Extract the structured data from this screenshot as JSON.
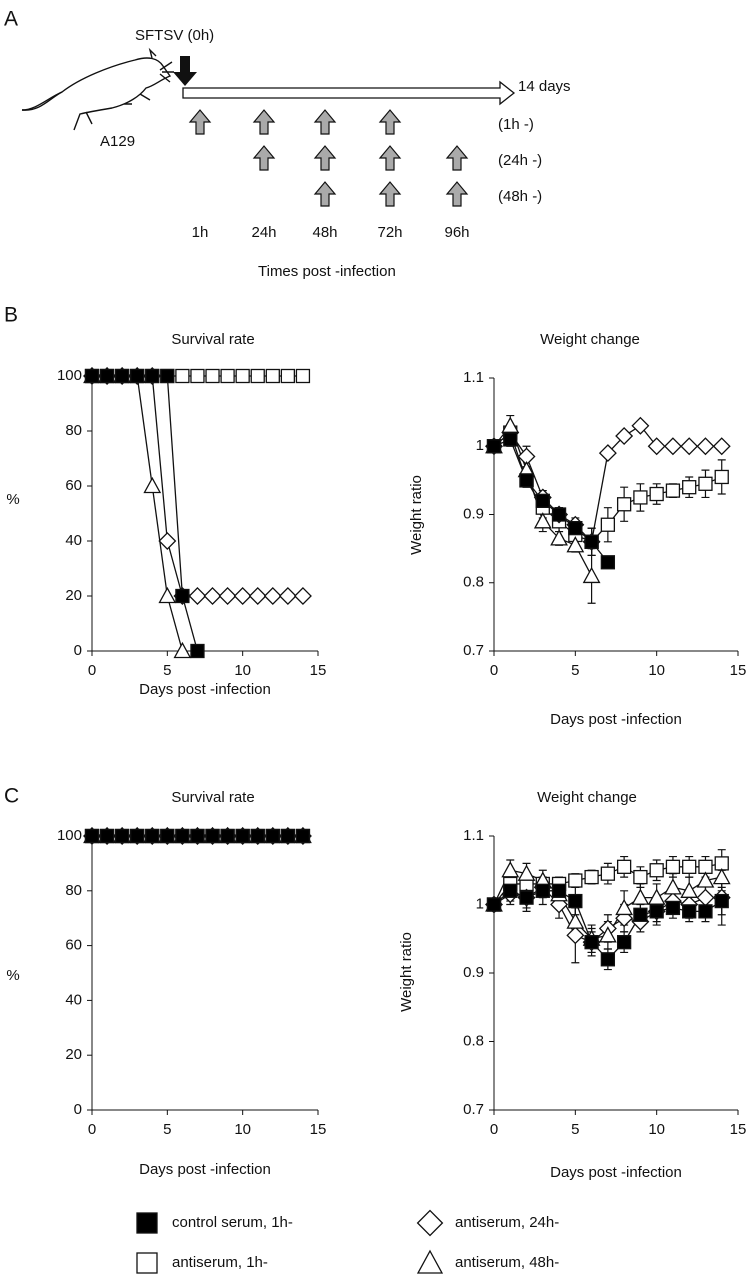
{
  "panels": [
    "A",
    "B",
    "C"
  ],
  "diagram": {
    "virus_label": "SFTSV (0h)",
    "mouse_label": "A129",
    "end_label": "14 days",
    "groups": [
      "(1h -)",
      "(24h  -)",
      "(48h  -)"
    ],
    "times": [
      "1h",
      "24h",
      "48h",
      "72h",
      "96h"
    ],
    "axis_title": "Times post -infection"
  },
  "legend": [
    "control serum, 1h-",
    "antiserum, 1h-",
    "antiserum, 24h-",
    "antiserum, 48h-"
  ],
  "chart_data": [
    {
      "type": "line",
      "title": "Survival rate",
      "y_label": "%",
      "x_label": "Days post -infection",
      "x": [
        0,
        1,
        2,
        3,
        4,
        5,
        6,
        7,
        8,
        9,
        10,
        11,
        12,
        13,
        14
      ],
      "xlim": [
        0,
        15
      ],
      "xticks": [
        0,
        5,
        10,
        15
      ],
      "ylim": [
        0,
        100
      ],
      "yticks": [
        0,
        20,
        40,
        60,
        80,
        100
      ],
      "series": [
        {
          "marker": "square",
          "color": "#000000",
          "values": [
            100,
            100,
            100,
            100,
            100,
            100,
            20,
            0,
            null,
            null,
            null,
            null,
            null,
            null,
            null
          ]
        },
        {
          "marker": "square",
          "color": "#ffffff",
          "values": [
            100,
            100,
            100,
            100,
            100,
            100,
            100,
            100,
            100,
            100,
            100,
            100,
            100,
            100,
            100
          ]
        },
        {
          "marker": "diamond",
          "color": "#ffffff",
          "values": [
            100,
            100,
            100,
            100,
            100,
            40,
            20,
            20,
            20,
            20,
            20,
            20,
            20,
            20,
            20
          ]
        },
        {
          "marker": "triangle",
          "color": "#ffffff",
          "values": [
            100,
            100,
            100,
            100,
            60,
            20,
            0,
            null,
            null,
            null,
            null,
            null,
            null,
            null,
            null
          ]
        }
      ]
    },
    {
      "type": "line",
      "title": "Weight change",
      "y_label": "Weight ratio",
      "x_label": "Days post -infection",
      "x": [
        0,
        1,
        2,
        3,
        4,
        5,
        6,
        7,
        8,
        9,
        10,
        11,
        12,
        13,
        14
      ],
      "xlim": [
        0,
        15
      ],
      "xticks": [
        0,
        5,
        10,
        15
      ],
      "ylim": [
        0.7,
        1.1
      ],
      "yticks": [
        0.7,
        0.8,
        0.9,
        1,
        1.1
      ],
      "series": [
        {
          "marker": "square",
          "color": "#000000",
          "values": [
            1,
            1.01,
            0.95,
            0.92,
            0.9,
            0.88,
            0.86,
            0.83,
            null,
            null,
            null,
            null,
            null,
            null,
            null
          ],
          "errors": [
            0,
            0.01,
            0.01,
            0.01,
            0.01,
            0.01,
            0.02,
            0,
            null,
            null,
            null,
            null,
            null,
            null,
            null
          ]
        },
        {
          "marker": "square",
          "color": "#ffffff",
          "values": [
            1,
            1.02,
            0.95,
            0.91,
            0.89,
            0.87,
            0.86,
            0.885,
            0.915,
            0.925,
            0.93,
            0.935,
            0.94,
            0.945,
            0.955
          ],
          "errors": [
            0,
            0.01,
            0.01,
            0.015,
            0.015,
            0.015,
            0.02,
            0.025,
            0.025,
            0.02,
            0.015,
            0.01,
            0.015,
            0.02,
            0.025
          ]
        },
        {
          "marker": "diamond",
          "color": "#ffffff",
          "values": [
            1,
            1.02,
            0.985,
            0.925,
            0.9,
            0.885,
            0.86,
            0.99,
            1.015,
            1.03,
            1,
            1,
            1,
            1,
            1
          ],
          "errors": [
            0,
            0.01,
            0.015,
            0.01,
            0.01,
            0.01,
            0.02,
            0,
            0,
            0,
            0,
            0,
            0,
            0,
            0
          ]
        },
        {
          "marker": "triangle",
          "color": "#ffffff",
          "values": [
            1,
            1.03,
            0.965,
            0.89,
            0.865,
            0.855,
            0.81,
            null,
            null,
            null,
            null,
            null,
            null,
            null,
            null
          ],
          "errors": [
            0,
            0.015,
            0.02,
            0.015,
            0.01,
            0.01,
            0.04,
            null,
            null,
            null,
            null,
            null,
            null,
            null,
            null
          ]
        }
      ]
    },
    {
      "type": "line",
      "title": "Survival rate",
      "y_label": "%",
      "x_label": "Days post -infection",
      "x": [
        0,
        1,
        2,
        3,
        4,
        5,
        6,
        7,
        8,
        9,
        10,
        11,
        12,
        13,
        14
      ],
      "xlim": [
        0,
        15
      ],
      "xticks": [
        0,
        5,
        10,
        15
      ],
      "ylim": [
        0,
        100
      ],
      "yticks": [
        0,
        20,
        40,
        60,
        80,
        100
      ],
      "series": [
        {
          "marker": "square",
          "color": "#000000",
          "values": [
            100,
            100,
            100,
            100,
            100,
            100,
            100,
            100,
            100,
            100,
            100,
            100,
            100,
            100,
            100
          ]
        },
        {
          "marker": "square",
          "color": "#ffffff",
          "values": [
            100,
            100,
            100,
            100,
            100,
            100,
            100,
            100,
            100,
            100,
            100,
            100,
            100,
            100,
            100
          ]
        },
        {
          "marker": "diamond",
          "color": "#ffffff",
          "values": [
            100,
            100,
            100,
            100,
            100,
            100,
            100,
            100,
            100,
            100,
            100,
            100,
            100,
            100,
            100
          ]
        },
        {
          "marker": "triangle",
          "color": "#ffffff",
          "values": [
            100,
            100,
            100,
            100,
            100,
            100,
            100,
            100,
            100,
            100,
            100,
            100,
            100,
            100,
            100
          ]
        }
      ]
    },
    {
      "type": "line",
      "title": "Weight change",
      "y_label": "Weight ratio",
      "x_label": "Days post -infection",
      "x": [
        0,
        1,
        2,
        3,
        4,
        5,
        6,
        7,
        8,
        9,
        10,
        11,
        12,
        13,
        14
      ],
      "xlim": [
        0,
        15
      ],
      "xticks": [
        0,
        5,
        10,
        15
      ],
      "ylim": [
        0.7,
        1.1
      ],
      "yticks": [
        0.7,
        0.8,
        0.9,
        1,
        1.1
      ],
      "series": [
        {
          "marker": "square",
          "color": "#000000",
          "values": [
            1,
            1.02,
            1.01,
            1.02,
            1.02,
            1.005,
            0.945,
            0.92,
            0.945,
            0.985,
            0.99,
            0.995,
            0.99,
            0.99,
            1.005
          ],
          "errors": [
            0,
            0.015,
            0.015,
            0.02,
            0.015,
            0.02,
            0.015,
            0.015,
            0.015,
            0.015,
            0.015,
            0.015,
            0.015,
            0.015,
            0.02
          ]
        },
        {
          "marker": "square",
          "color": "#ffffff",
          "values": [
            1,
            1.03,
            1.03,
            1.03,
            1.03,
            1.035,
            1.04,
            1.045,
            1.055,
            1.04,
            1.05,
            1.055,
            1.055,
            1.055,
            1.06
          ],
          "errors": [
            0,
            0.01,
            0.01,
            0.01,
            0.01,
            0.01,
            0.01,
            0.015,
            0.015,
            0.015,
            0.015,
            0.015,
            0.015,
            0.015,
            0.02
          ]
        },
        {
          "marker": "diamond",
          "color": "#ffffff",
          "values": [
            1,
            1.015,
            1.01,
            1.025,
            1,
            0.955,
            0.945,
            0.965,
            0.98,
            0.975,
            0.99,
            1.005,
            1,
            1.01,
            1.01
          ],
          "errors": [
            0,
            0.015,
            0.02,
            0.015,
            0.02,
            0.04,
            0.02,
            0.02,
            0.02,
            0.015,
            0.02,
            0.015,
            0.02,
            0.02,
            0.04
          ]
        },
        {
          "marker": "triangle",
          "color": "#ffffff",
          "values": [
            1,
            1.05,
            1.045,
            1.035,
            1.015,
            0.975,
            0.95,
            0.955,
            0.995,
            1.01,
            1.01,
            1.025,
            1.02,
            1.035,
            1.04
          ],
          "errors": [
            0,
            0.015,
            0.015,
            0.015,
            0.015,
            0.02,
            0.02,
            0.02,
            0.025,
            0.02,
            0.02,
            0.02,
            0.02,
            0.02,
            0.02
          ]
        }
      ]
    }
  ]
}
